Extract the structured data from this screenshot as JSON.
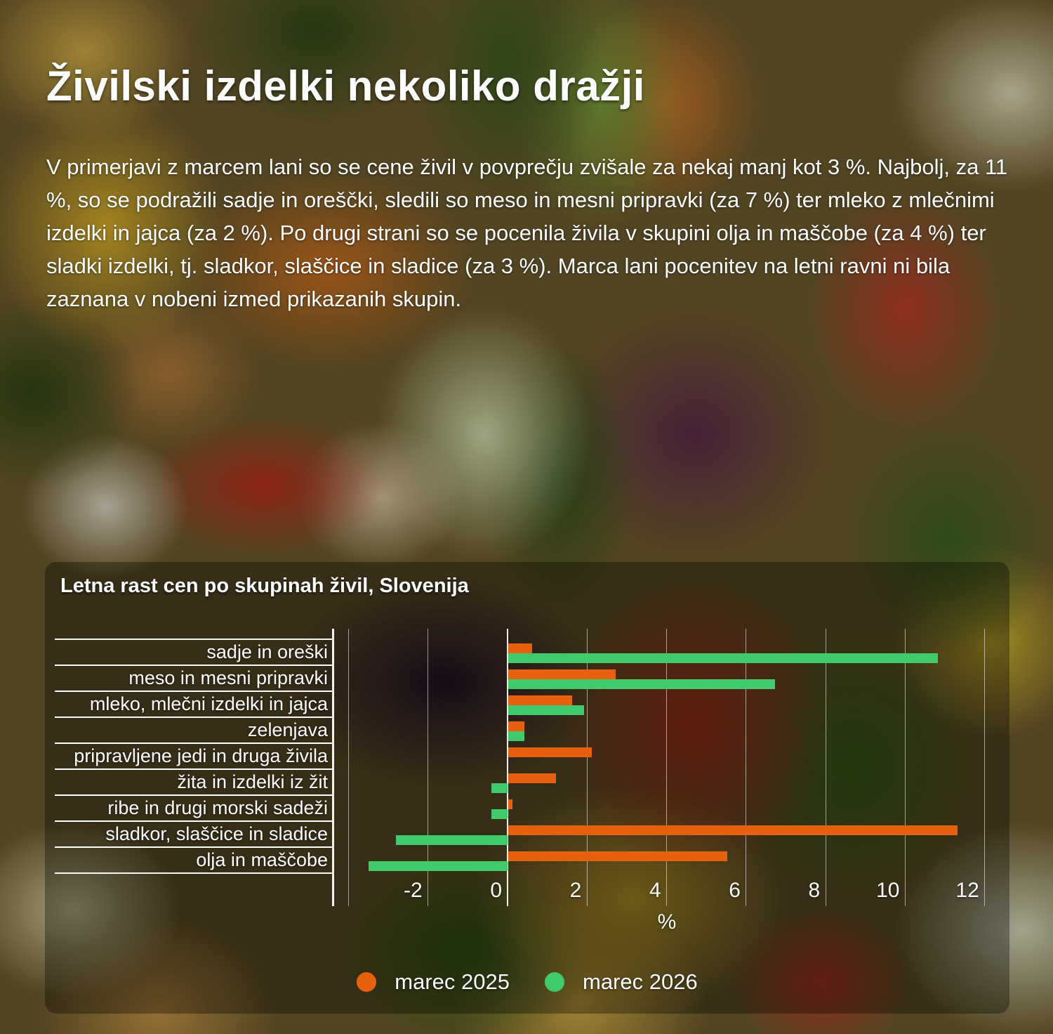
{
  "page": {
    "title": "Živilski izdelki nekoliko dražji",
    "intro": "V primerjavi z marcem lani so se cene živil v povprečju zvišale za nekaj manj kot 3 %. Najbolj, za 11 %, so se podražili sadje in oreščki, sledili so meso in mesni pripravki (za 7 %) ter mleko z mlečnimi izdelki in jajca (za 2 %). Po drugi strani so se pocenila živila v skupini olja in maščobe (za 4 %) ter sladki izdelki, tj. sladkor, slaščice in sladice (za 3 %). Marca lani pocenitev na letni ravni ni bila zaznana v nobeni izmed prikazanih skupin."
  },
  "chart_data": {
    "type": "bar",
    "orientation": "horizontal",
    "title": "Letna rast cen po skupinah živil, Slovenija",
    "categories": [
      "sadje in oreški",
      "meso in mesni pripravki",
      "mleko, mlečni izdelki in jajca",
      "zelenjava",
      "pripravljene jedi in druga živila",
      "žita in izdelki iz žit",
      "ribe in drugi morski sadeži",
      "sladkor, slaščice in sladice",
      "olja in maščobe"
    ],
    "series": [
      {
        "name": "marec 2025",
        "color": "#e6600d",
        "values": [
          0.6,
          2.7,
          1.6,
          0.4,
          2.1,
          1.2,
          0.1,
          11.3,
          5.5
        ]
      },
      {
        "name": "marec 2026",
        "color": "#41c96d",
        "values": [
          10.8,
          6.7,
          1.9,
          0.4,
          0.0,
          -0.4,
          -0.4,
          -2.8,
          -3.5
        ]
      }
    ],
    "xlabel": "%",
    "x_ticks": [
      -2,
      0,
      2,
      4,
      6,
      8,
      10,
      12
    ],
    "gridlines_at": [
      -4,
      -2,
      0,
      2,
      4,
      6,
      8,
      10,
      12
    ],
    "xlim": [
      -4.4,
      12.7
    ],
    "legend_position": "bottom",
    "grid": true
  }
}
